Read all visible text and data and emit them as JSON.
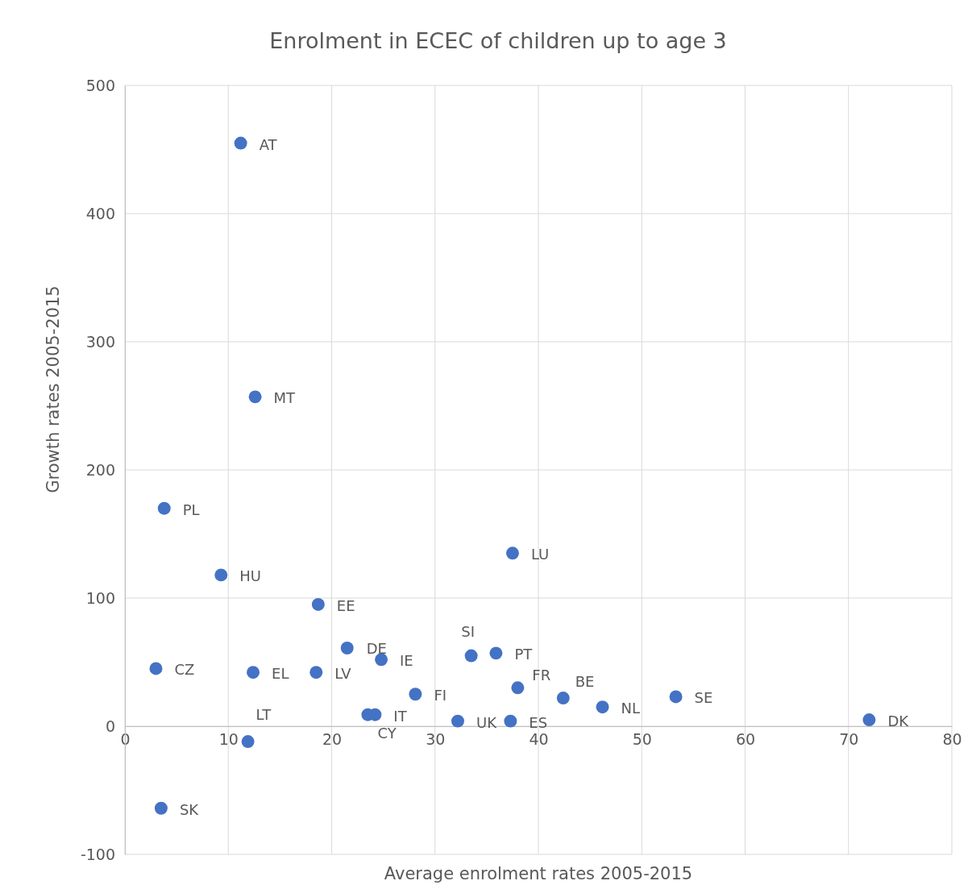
{
  "chart_data": {
    "type": "scatter",
    "title": "Enrolment in ECEC of children up to age 3",
    "xlabel": "Average enrolment rates 2005-2015",
    "ylabel": "Growth rates 2005-2015",
    "xlim": [
      0,
      80
    ],
    "xticks": [
      0,
      10,
      20,
      30,
      40,
      50,
      60,
      70,
      80
    ],
    "ylim": [
      -100,
      500
    ],
    "yticks": [
      -100,
      0,
      100,
      200,
      300,
      400,
      500
    ],
    "grid": true,
    "marker": "circle",
    "series": [
      {
        "color": "#4472c4",
        "x": [
          11.2,
          12.6,
          3.8,
          9.3,
          18.7,
          37.5,
          21.5,
          24.8,
          33.5,
          35.9,
          3.0,
          12.4,
          18.5,
          38.0,
          42.4,
          46.2,
          53.3,
          72.0,
          28.1,
          23.5,
          24.2,
          32.2,
          37.3,
          11.9,
          3.5
        ],
        "values": [
          455,
          257,
          170,
          118,
          95,
          135,
          61,
          52,
          55,
          57,
          45,
          42,
          42,
          30,
          22,
          15,
          23,
          5,
          25,
          9,
          9,
          4,
          4,
          -12,
          -64
        ]
      }
    ],
    "annotations": [
      {
        "text": "AT",
        "x": 11.2,
        "y": 455
      },
      {
        "text": "MT",
        "x": 12.6,
        "y": 257
      },
      {
        "text": "PL",
        "x": 3.8,
        "y": 170
      },
      {
        "text": "HU",
        "x": 9.3,
        "y": 118
      },
      {
        "text": "EE",
        "x": 18.7,
        "y": 95
      },
      {
        "text": "LU",
        "x": 37.5,
        "y": 135
      },
      {
        "text": "DE",
        "x": 21.5,
        "y": 61
      },
      {
        "text": "IE",
        "x": 24.8,
        "y": 52
      },
      {
        "text": "SI",
        "x": 33.5,
        "y": 55
      },
      {
        "text": "PT",
        "x": 35.9,
        "y": 57
      },
      {
        "text": "CZ",
        "x": 3.0,
        "y": 45
      },
      {
        "text": "EL",
        "x": 12.4,
        "y": 42
      },
      {
        "text": "LV",
        "x": 18.5,
        "y": 42
      },
      {
        "text": "FR",
        "x": 38.0,
        "y": 30
      },
      {
        "text": "BE",
        "x": 42.4,
        "y": 22
      },
      {
        "text": "NL",
        "x": 46.2,
        "y": 15
      },
      {
        "text": "SE",
        "x": 53.3,
        "y": 23
      },
      {
        "text": "DK",
        "x": 72.0,
        "y": 5
      },
      {
        "text": "FI",
        "x": 28.1,
        "y": 25
      },
      {
        "text": "CY",
        "x": 23.5,
        "y": 9
      },
      {
        "text": "IT",
        "x": 24.2,
        "y": 9
      },
      {
        "text": "UK",
        "x": 32.2,
        "y": 4
      },
      {
        "text": "ES",
        "x": 37.3,
        "y": 4
      },
      {
        "text": "LT",
        "x": 11.9,
        "y": -12
      },
      {
        "text": "SK",
        "x": 3.5,
        "y": -64
      }
    ]
  }
}
